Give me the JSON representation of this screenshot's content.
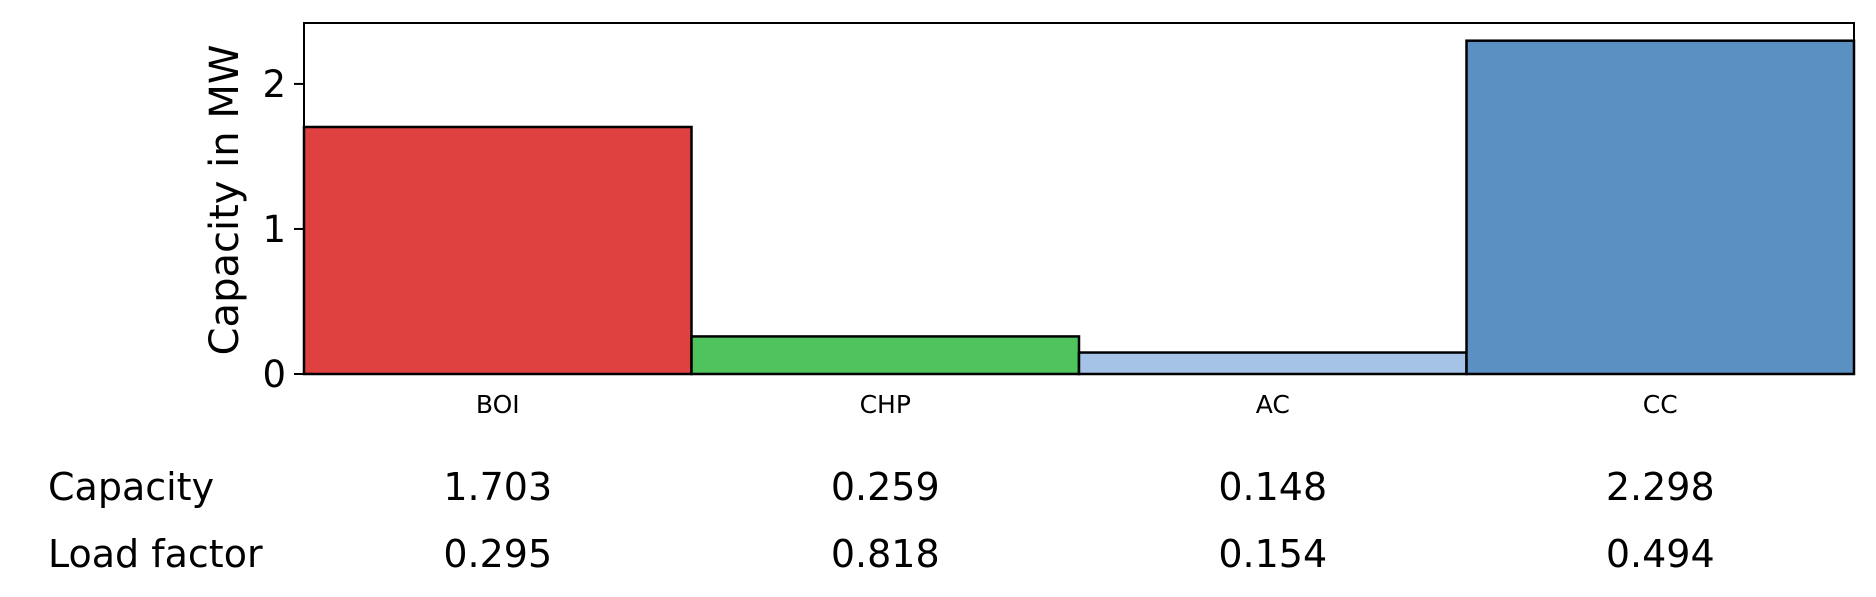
{
  "chart_data": {
    "type": "bar",
    "ylabel": "Capacity in MW",
    "categories": [
      "BOI",
      "CHP",
      "AC",
      "CC"
    ],
    "values": [
      1.703,
      0.259,
      0.148,
      2.298
    ],
    "colors": [
      "#df4040",
      "#4fc35c",
      "#a4c3e6",
      "#5b90c2"
    ],
    "ylim": [
      0,
      2.42
    ],
    "yticks": [
      0,
      1,
      2
    ],
    "grid": false,
    "table": {
      "rows": [
        {
          "label": "Capacity",
          "values": [
            "1.703",
            "0.259",
            "0.148",
            "2.298"
          ]
        },
        {
          "label": "Load factor",
          "values": [
            "0.295",
            "0.818",
            "0.154",
            "0.494"
          ]
        }
      ]
    }
  }
}
